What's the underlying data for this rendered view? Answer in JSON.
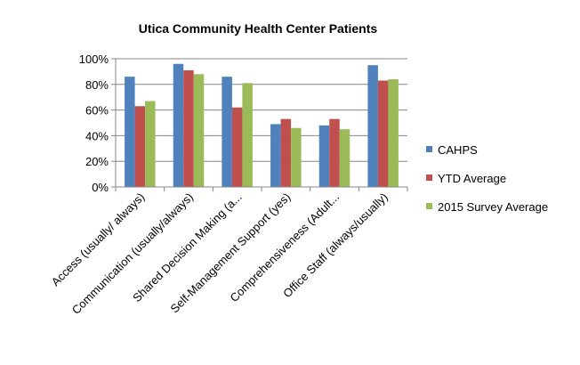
{
  "chart_data": {
    "type": "bar",
    "title": "Utica Community Health Center Patients",
    "xlabel": "",
    "ylabel": "",
    "ylim": [
      0,
      100
    ],
    "yticks": [
      "0%",
      "20%",
      "40%",
      "60%",
      "80%",
      "100%"
    ],
    "grid": true,
    "legend_position": "right",
    "categories": [
      "Access   (usually/ always)",
      "Communication (usually/always)",
      "Shared Decision Making (a...",
      "Self-Management Support (yes)",
      "Comprehensiveness (Adult...",
      "Office Staff  (always/usually)"
    ],
    "series": [
      {
        "name": "CAHPS",
        "color": "#4F81BD",
        "values": [
          86,
          96,
          86,
          49,
          48,
          95
        ]
      },
      {
        "name": "YTD Average",
        "color": "#C0504D",
        "values": [
          63,
          91,
          62,
          53,
          53,
          83
        ]
      },
      {
        "name": "2015 Survey Average",
        "color": "#9BBB59",
        "values": [
          67,
          88,
          81,
          46,
          45,
          84
        ]
      }
    ]
  }
}
